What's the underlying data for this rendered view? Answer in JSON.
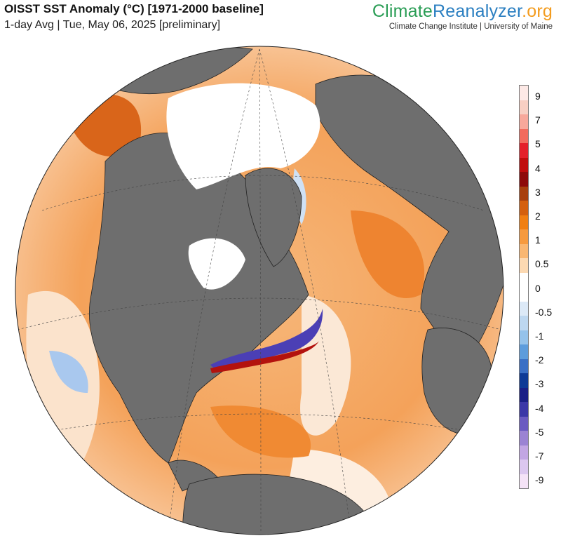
{
  "header": {
    "title": "OISST SST Anomaly (°C) [1971-2000 baseline]",
    "subtitle": "1-day Avg | Tue, May 06, 2025 [preliminary]"
  },
  "brand": {
    "part1": "Climate",
    "part2": "Reanalyzer",
    "part3": ".org",
    "affiliation": "Climate Change Institute | University of Maine"
  },
  "colors": {
    "ocean_warm": "#f4a25a",
    "ocean_neutral": "#ffffff",
    "land": "#6e6e6e",
    "sea_ice": "#ffffff",
    "brand_green": "#2a9d55",
    "brand_blue": "#2b7fc1",
    "brand_orange": "#f39c1f"
  },
  "legend": {
    "ticks": [
      "9",
      "7",
      "5",
      "4",
      "3",
      "2",
      "1",
      "0.5",
      "0",
      "-0.5",
      "-1",
      "-2",
      "-3",
      "-4",
      "-5",
      "-7",
      "-9"
    ],
    "colors": [
      "#fde9e6",
      "#f8cfc3",
      "#f8a89b",
      "#f26c5e",
      "#e4202a",
      "#c00d0d",
      "#8d0a0a",
      "#a8400d",
      "#d4600f",
      "#f07f13",
      "#f69a3f",
      "#f9b772",
      "#fcd9b2",
      "#ffffff",
      "#ffffff",
      "#dce9f7",
      "#bdd7f0",
      "#95c2ea",
      "#5d9cdc",
      "#3a6fc5",
      "#0e3a96",
      "#1a1f86",
      "#3b37a7",
      "#6b5bc1",
      "#9b83d3",
      "#c2a6e3",
      "#dcc7ef",
      "#f5e3f7"
    ]
  }
}
